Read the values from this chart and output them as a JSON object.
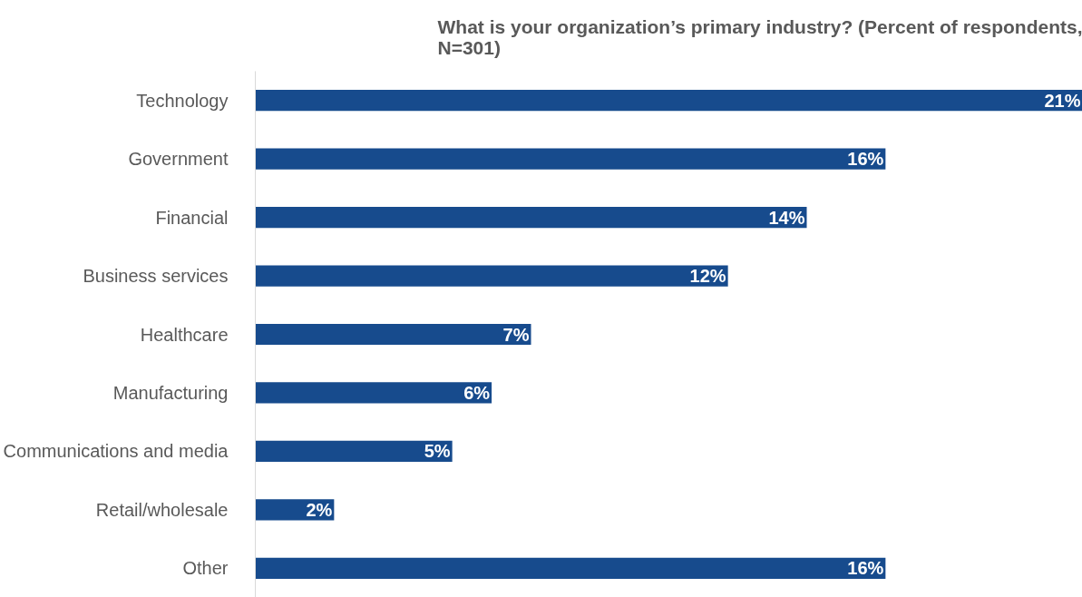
{
  "chart_data": {
    "type": "bar",
    "orientation": "horizontal",
    "title": "What is your organization’s primary industry? (Percent of respondents, N=301)",
    "categories": [
      "Technology",
      "Government",
      "Financial",
      "Business services",
      "Healthcare",
      "Manufacturing",
      "Communications and media",
      "Retail/wholesale",
      "Other"
    ],
    "values": [
      21,
      16,
      14,
      12,
      7,
      6,
      5,
      2,
      16
    ],
    "value_labels": [
      "21%",
      "16%",
      "14%",
      "12%",
      "7%",
      "6%",
      "5%",
      "2%",
      "16%"
    ],
    "color": "#174b8d",
    "grid": false,
    "tick_labels": "y"
  }
}
